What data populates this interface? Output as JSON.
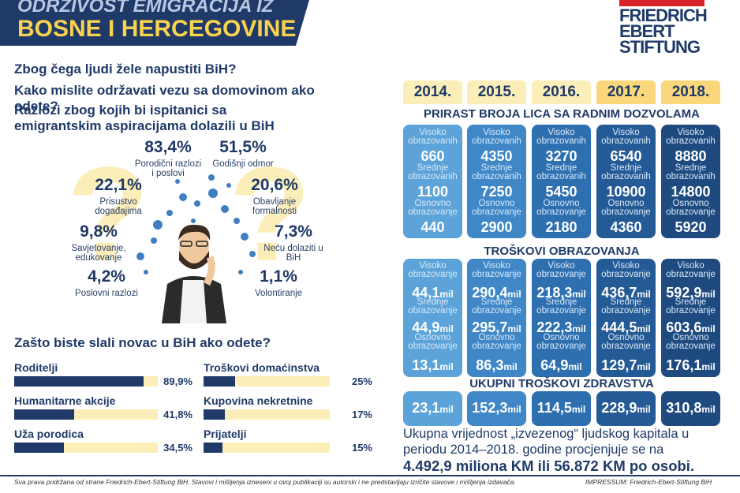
{
  "header": {
    "title_line1": "ODRŽIVOST EMIGRACIJA IZ",
    "title_line2": "BOSNE I HERCEGOVINE"
  },
  "logo": {
    "line1": "FRIEDRICH",
    "line2": "EBERT",
    "line3": "STIFTUNG"
  },
  "questions": [
    "Zbog čega ljudi žele napustiti BiH?",
    "Kako mislite održavati vezu sa domovinom ako odete?",
    "Razlozi zbog kojih bi ispitanici sa emigrantskim aspiracijama dolazili u BiH"
  ],
  "return_reasons": [
    {
      "value": "83,4%",
      "label": "Porodični razlozi i poslovi"
    },
    {
      "value": "51,5%",
      "label": "Godišnji odmor"
    },
    {
      "value": "22,1%",
      "label": "Prisustvo događajima"
    },
    {
      "value": "20,6%",
      "label": "Obavljanje formalnosti"
    },
    {
      "value": "9,8%",
      "label": "Savjetovanje, edukovanje"
    },
    {
      "value": "7,3%",
      "label": "Neću dolaziti u BiH"
    },
    {
      "value": "4,2%",
      "label": "Poslovni razlozi"
    },
    {
      "value": "1,1%",
      "label": "Volontiranje"
    }
  ],
  "money": {
    "question": "Zašto biste slali novac u BiH ako odete?",
    "items": [
      {
        "name": "Roditelji",
        "value": 89.9,
        "value_label": "89,9%"
      },
      {
        "name": "Humanitarne akcije",
        "value": 41.8,
        "value_label": "41,8%"
      },
      {
        "name": "Uža porodica",
        "value": 34.5,
        "value_label": "34,5%"
      },
      {
        "name": "Troškovi domaćinstva",
        "value": 25,
        "value_label": "25%"
      },
      {
        "name": "Kupovina nekretnine",
        "value": 17,
        "value_label": "17%"
      },
      {
        "name": "Prijatelji",
        "value": 15,
        "value_label": "15%"
      }
    ]
  },
  "table": {
    "years": [
      "2014.",
      "2015.",
      "2016.",
      "2017.",
      "2018."
    ],
    "unit": "mil",
    "sections": [
      {
        "title": "PRIRAST BROJA LICA SA RADNIM DOZVOLAMA",
        "row_labels": [
          "Visoko obrazovanih",
          "Srednje obrazovanih",
          "Osnovno obrazovanje"
        ],
        "columns": [
          [
            660,
            1100,
            440
          ],
          [
            4350,
            7250,
            2900
          ],
          [
            3270,
            5450,
            2180
          ],
          [
            6540,
            10900,
            4360
          ],
          [
            8880,
            14800,
            5920
          ]
        ]
      },
      {
        "title": "TROŠKOVI OBRAZOVANJA",
        "row_labels": [
          "Visoko obrazovanje",
          "Srednje obrazovanje",
          "Osnovno obrazovanje"
        ],
        "columns": [
          [
            "44,1",
            "44,9",
            "13,1"
          ],
          [
            "290,4",
            "295,7",
            "86,3"
          ],
          [
            "218,3",
            "222,3",
            "64,9"
          ],
          [
            "436,7",
            "444,5",
            "129,7"
          ],
          [
            "592,9",
            "603,6",
            "176,1"
          ]
        ]
      },
      {
        "title": "UKUPNI TROŠKOVI ZDRAVSTVA",
        "row_labels": [],
        "columns": [
          [
            "23,1"
          ],
          [
            "152,3"
          ],
          [
            "114,5"
          ],
          [
            "228,9"
          ],
          [
            "310,8"
          ]
        ]
      }
    ]
  },
  "summary": {
    "text": "Ukupna vrijednost „izvezenog“ ljudskog kapitala u periodu 2014–2018. godine procjenjuje se na",
    "highlight": "4.492,9 miliona KM ili 56.872 KM po osobi."
  },
  "footer": {
    "left": "Sva prava pridržana od strane Friedrich-Ebert-Stiftung BiH. Stavovi i mišljenja izneseni u ovoj publikaciji su autorski i ne predstavljaju izričite stavove i mišljenja izdavača.",
    "right": "IMPRESSUM: Friedrich-Ebert-Stiftung BiH"
  }
}
